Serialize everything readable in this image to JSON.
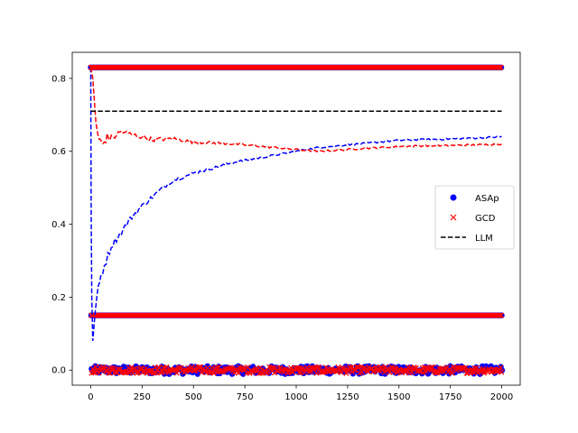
{
  "chart_data": {
    "type": "scatter",
    "title": "",
    "xlabel": "",
    "ylabel": "",
    "xlim": [
      -90,
      2090
    ],
    "ylim": [
      -0.0415,
      0.8715
    ],
    "xticks": [
      0,
      250,
      500,
      750,
      1000,
      1250,
      1500,
      1750,
      2000
    ],
    "xtick_labels": [
      "0",
      "250",
      "500",
      "750",
      "1000",
      "1250",
      "1500",
      "1750",
      "2000"
    ],
    "yticks": [
      0.0,
      0.2,
      0.4,
      0.6,
      0.8
    ],
    "ytick_labels": [
      "0.0",
      "0.2",
      "0.4",
      "0.6",
      "0.8"
    ],
    "grid": false,
    "legend_position": "center-right",
    "scatter_levels": [
      0.83,
      0.15,
      0.0
    ],
    "x_range": [
      0,
      2000
    ],
    "series": [
      {
        "name": "ASAp",
        "kind": "scatter-and-running-mean",
        "marker": "circle",
        "color": "#0000ff",
        "running_mean": [
          [
            0,
            0.83
          ],
          [
            2,
            0.45
          ],
          [
            5,
            0.2
          ],
          [
            10,
            0.08
          ],
          [
            20,
            0.15
          ],
          [
            30,
            0.2
          ],
          [
            50,
            0.26
          ],
          [
            75,
            0.3
          ],
          [
            100,
            0.34
          ],
          [
            150,
            0.38
          ],
          [
            200,
            0.42
          ],
          [
            250,
            0.45
          ],
          [
            300,
            0.475
          ],
          [
            350,
            0.5
          ],
          [
            400,
            0.52
          ],
          [
            450,
            0.53
          ],
          [
            500,
            0.54
          ],
          [
            600,
            0.555
          ],
          [
            700,
            0.57
          ],
          [
            800,
            0.58
          ],
          [
            900,
            0.59
          ],
          [
            1000,
            0.6
          ],
          [
            1100,
            0.61
          ],
          [
            1200,
            0.615
          ],
          [
            1300,
            0.62
          ],
          [
            1400,
            0.625
          ],
          [
            1500,
            0.63
          ],
          [
            1600,
            0.632
          ],
          [
            1700,
            0.633
          ],
          [
            1800,
            0.635
          ],
          [
            1900,
            0.637
          ],
          [
            2000,
            0.64
          ]
        ]
      },
      {
        "name": "GCD",
        "kind": "scatter-and-running-mean",
        "marker": "x",
        "color": "#ff0000",
        "running_mean": [
          [
            0,
            0.83
          ],
          [
            10,
            0.8
          ],
          [
            25,
            0.68
          ],
          [
            40,
            0.63
          ],
          [
            60,
            0.62
          ],
          [
            80,
            0.64
          ],
          [
            100,
            0.635
          ],
          [
            150,
            0.655
          ],
          [
            200,
            0.645
          ],
          [
            250,
            0.64
          ],
          [
            300,
            0.632
          ],
          [
            400,
            0.635
          ],
          [
            500,
            0.625
          ],
          [
            600,
            0.623
          ],
          [
            700,
            0.62
          ],
          [
            800,
            0.615
          ],
          [
            900,
            0.61
          ],
          [
            1000,
            0.605
          ],
          [
            1100,
            0.6
          ],
          [
            1200,
            0.603
          ],
          [
            1300,
            0.607
          ],
          [
            1400,
            0.61
          ],
          [
            1500,
            0.613
          ],
          [
            1600,
            0.615
          ],
          [
            1700,
            0.615
          ],
          [
            1800,
            0.617
          ],
          [
            1900,
            0.618
          ],
          [
            2000,
            0.62
          ]
        ]
      },
      {
        "name": "LLM",
        "kind": "line",
        "style": "dashed",
        "color": "#000000",
        "x": [
          0,
          2000
        ],
        "y": [
          0.71,
          0.71
        ]
      }
    ]
  }
}
